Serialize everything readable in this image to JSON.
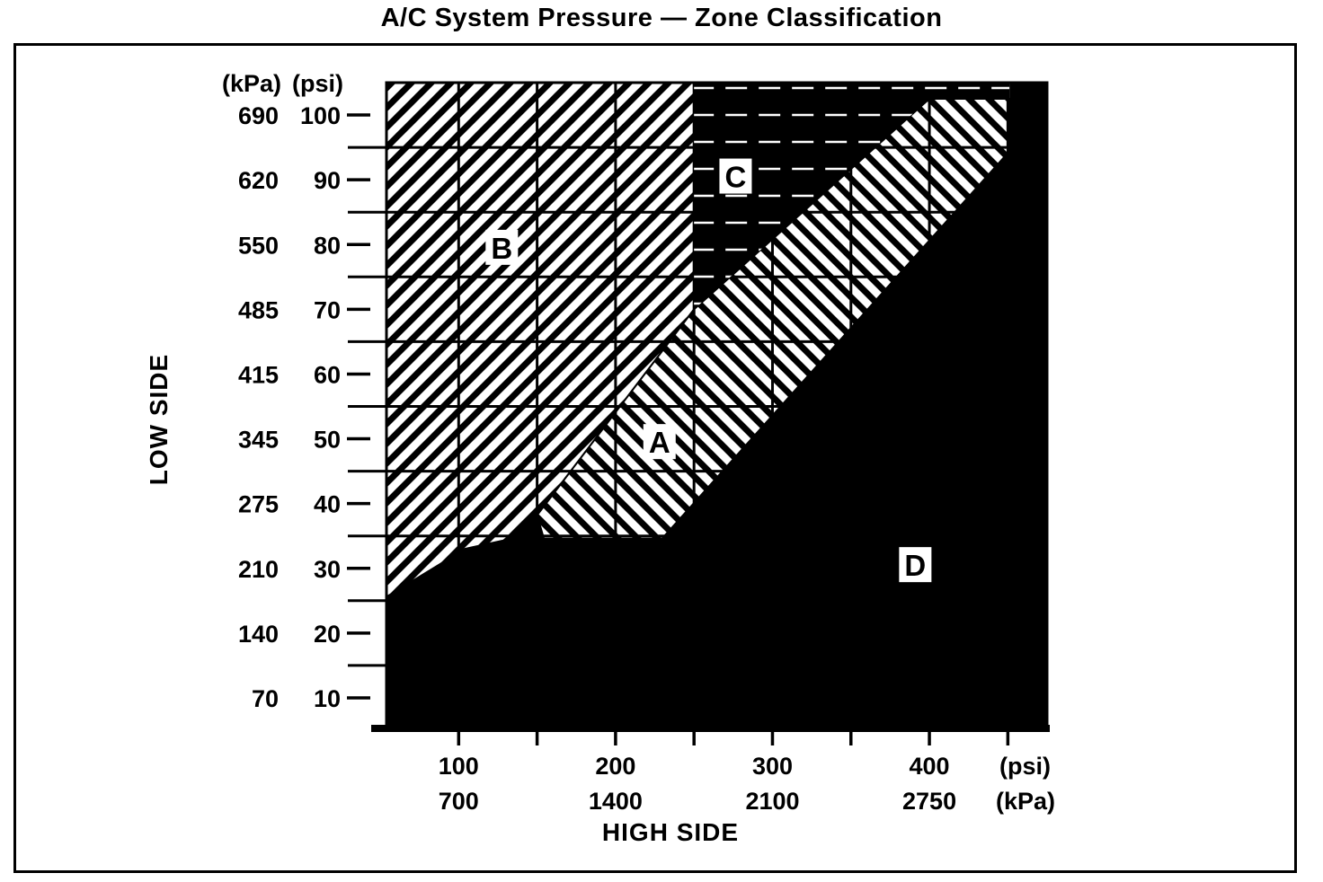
{
  "title": "A/C System Pressure — Zone Classification",
  "chart_data": {
    "type": "area",
    "title": "A/C System Pressure — Zone Classification",
    "x_axis": {
      "label": "HIGH SIDE",
      "unit_rows": [
        "(psi)",
        "(kPa)"
      ],
      "ticks": [
        {
          "psi": 100,
          "kpa": 700
        },
        {
          "psi": 200,
          "kpa": 1400
        },
        {
          "psi": 300,
          "kpa": 2100
        },
        {
          "psi": 400,
          "kpa": 2750
        }
      ],
      "tick_marks_psi": [
        100,
        150,
        200,
        250,
        300,
        350,
        400,
        450
      ],
      "gridlines_psi": [
        100,
        150,
        200,
        250,
        300,
        350,
        400,
        450
      ],
      "range_psi": [
        54,
        475
      ],
      "grid": true
    },
    "y_axis": {
      "label": "LOW SIDE",
      "unit_headers": [
        "(kPa)",
        "(psi)"
      ],
      "ticks": [
        {
          "kpa": 690,
          "psi": 100
        },
        {
          "kpa": 620,
          "psi": 90
        },
        {
          "kpa": 550,
          "psi": 80
        },
        {
          "kpa": 485,
          "psi": 70
        },
        {
          "kpa": 415,
          "psi": 60
        },
        {
          "kpa": 345,
          "psi": 50
        },
        {
          "kpa": 275,
          "psi": 40
        },
        {
          "kpa": 210,
          "psi": 30
        },
        {
          "kpa": 140,
          "psi": 20
        },
        {
          "kpa": 70,
          "psi": 10
        }
      ],
      "gridlines_psi": [
        95,
        85,
        75,
        65,
        55,
        45,
        35,
        25,
        15
      ],
      "range_psi": [
        5,
        105
      ],
      "grid": true
    },
    "zones": [
      {
        "id": "B",
        "label": "B",
        "style": "hatch-up",
        "label_pos_psi": [
          127.5,
          79.5
        ],
        "polygon_psi": [
          [
            54,
            105
          ],
          [
            250,
            105
          ],
          [
            250,
            70
          ],
          [
            150,
            38.2
          ],
          [
            128.6,
            34.3
          ],
          [
            104,
            33
          ],
          [
            54,
            25.6
          ]
        ]
      },
      {
        "id": "A",
        "label": "A",
        "style": "hatch-down",
        "label_pos_psi": [
          228,
          49.5
        ],
        "polygon_psi": [
          [
            150,
            38.2
          ],
          [
            250,
            70
          ],
          [
            400,
            102.5
          ],
          [
            451,
            102.5
          ],
          [
            451,
            94.4
          ],
          [
            229.7,
            34.6
          ],
          [
            154.3,
            34.6
          ]
        ]
      },
      {
        "id": "D",
        "label": "D",
        "style": "black",
        "label_pos_psi": [
          391,
          30.5
        ],
        "polygon_psi": [
          [
            54,
            25.6
          ],
          [
            104,
            33
          ],
          [
            128.6,
            34.3
          ],
          [
            150,
            38.2
          ],
          [
            154.3,
            34.6
          ],
          [
            229.7,
            34.6
          ],
          [
            451,
            94.4
          ],
          [
            451,
            105
          ],
          [
            475,
            105
          ],
          [
            475,
            5
          ],
          [
            54,
            5
          ]
        ]
      },
      {
        "id": "C",
        "label": "C",
        "style": "black-dashed",
        "label_pos_psi": [
          276.5,
          90.5
        ],
        "polygon_psi": [
          [
            250,
            105
          ],
          [
            451,
            105
          ],
          [
            451,
            102.5
          ],
          [
            400,
            102.5
          ],
          [
            250,
            70
          ]
        ]
      }
    ],
    "colors": {
      "ink": "#000000",
      "paper": "#ffffff"
    }
  }
}
